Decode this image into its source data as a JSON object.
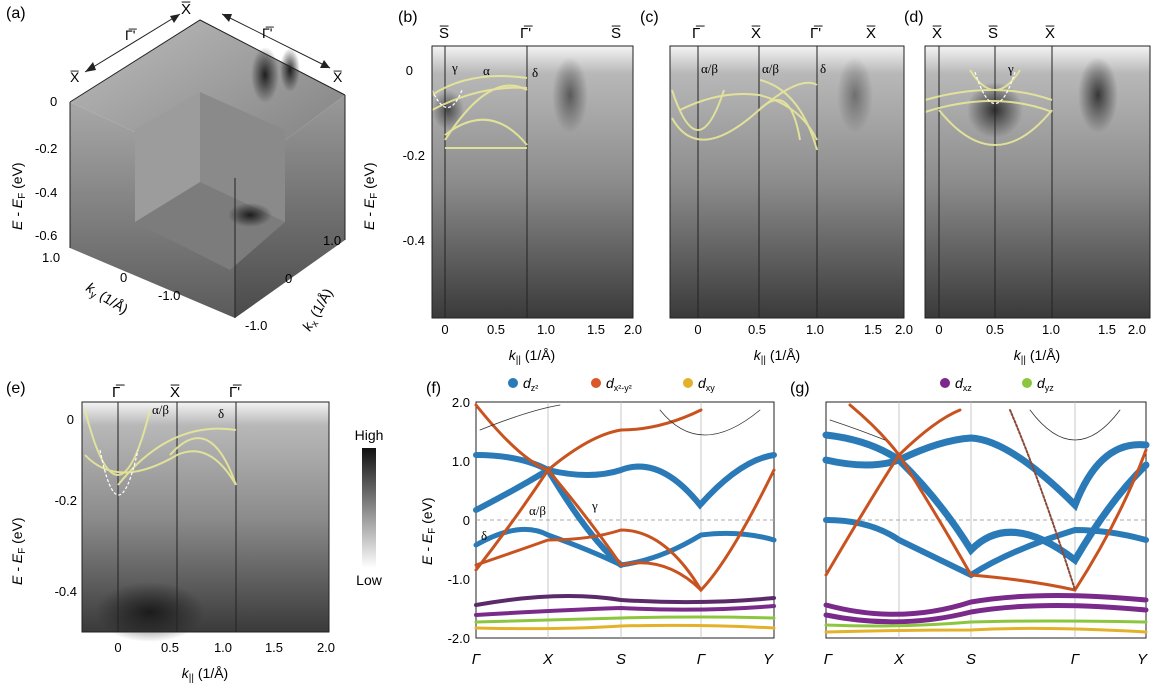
{
  "panels": {
    "a": {
      "letter": "(a)",
      "energy_label": "E - E",
      "energy_sub": "F",
      "energy_unit": " (eV)",
      "energy_ticks": [
        "0",
        "-0.2",
        "-0.4",
        "-0.6"
      ],
      "ky_label": "k",
      "ky_sub": "y",
      "ky_unit": " (1/Å)",
      "ky_ticks": [
        "1.0",
        "0",
        "-1.0"
      ],
      "kx_label": "k",
      "kx_sub": "x",
      "kx_unit": " (1/Å)",
      "kx_ticks": [
        "1.0",
        "0",
        "-1.0"
      ],
      "symmetry_top": "X̅",
      "symmetry_left_arrow": "Γ̅'",
      "symmetry_right_arrow": "Γ̅'",
      "symmetry_left": "X̅",
      "symmetry_right": "X̅"
    },
    "b": {
      "letter": "(b)",
      "symmetry": [
        "S̅",
        "Γ̅'",
        "S̅"
      ],
      "band_labels": [
        "γ",
        "α",
        "δ"
      ],
      "xlabel": "k",
      "xsub": "||",
      "xunit": " (1/Å)",
      "xticks": [
        "0",
        "0.5",
        "1.0",
        "1.5",
        "2.0"
      ],
      "ylabel": "E - E",
      "ysub": "F",
      "yunit": " (eV)",
      "yticks": [
        "0",
        "-0.2",
        "-0.4"
      ]
    },
    "c": {
      "letter": "(c)",
      "symmetry": [
        "Γ̅",
        "X̅",
        "Γ̅'",
        "X̅"
      ],
      "band_labels": [
        "α/β",
        "α/β",
        "δ"
      ],
      "xlabel": "k",
      "xsub": "||",
      "xunit": " (1/Å)",
      "xticks": [
        "0",
        "0.5",
        "1.0",
        "1.5",
        "2.0"
      ]
    },
    "d": {
      "letter": "(d)",
      "symmetry": [
        "X̅",
        "S̅",
        "X̅"
      ],
      "band_labels": [
        "γ"
      ],
      "xlabel": "k",
      "xsub": "||",
      "xunit": " (1/Å)",
      "xticks": [
        "0",
        "0.5",
        "1.0",
        "1.5",
        "2.0"
      ]
    },
    "e": {
      "letter": "(e)",
      "symmetry": [
        "Γ̅",
        "X̅",
        "Γ̅'"
      ],
      "band_labels": [
        "α/β",
        "δ"
      ],
      "xlabel": "k",
      "xsub": "||",
      "xunit": " (1/Å)",
      "xticks": [
        "0",
        "0.5",
        "1.0",
        "1.5",
        "2.0"
      ],
      "ylabel": "E - E",
      "ysub": "F",
      "yunit": " (eV)",
      "yticks": [
        "0",
        "-0.2",
        "-0.4"
      ]
    },
    "colorbar": {
      "high": "High",
      "low": "Low"
    },
    "f": {
      "letter": "(f)",
      "legend": [
        {
          "label": "d",
          "sub": "z²",
          "color": "#2a7ab8"
        },
        {
          "label": "d",
          "sub": "x²-y²",
          "color": "#d9572a"
        },
        {
          "label": "d",
          "sub": "xy",
          "color": "#e3b22a"
        }
      ],
      "band_labels": [
        "α/β",
        "γ",
        "δ"
      ],
      "ylabel": "E - E",
      "ysub": "F",
      "yunit": " (eV)",
      "yticks": [
        "2.0",
        "1.0",
        "0",
        "-1.0",
        "-2.0"
      ],
      "kpath": [
        "Γ",
        "X",
        "S",
        "Γ",
        "Y"
      ]
    },
    "g": {
      "letter": "(g)",
      "legend": [
        {
          "label": "d",
          "sub": "xz",
          "color": "#7a2a8a"
        },
        {
          "label": "d",
          "sub": "yz",
          "color": "#8cc63f"
        }
      ],
      "kpath": [
        "Γ",
        "X",
        "S",
        "Γ",
        "Y"
      ]
    }
  },
  "colors": {
    "band_yellow": "#e8e89a",
    "dz2": "#2a7ab8",
    "dx2y2": "#d9572a",
    "dxz": "#7a2a8a",
    "dyz": "#8cc63f",
    "dxy": "#e3b22a"
  }
}
